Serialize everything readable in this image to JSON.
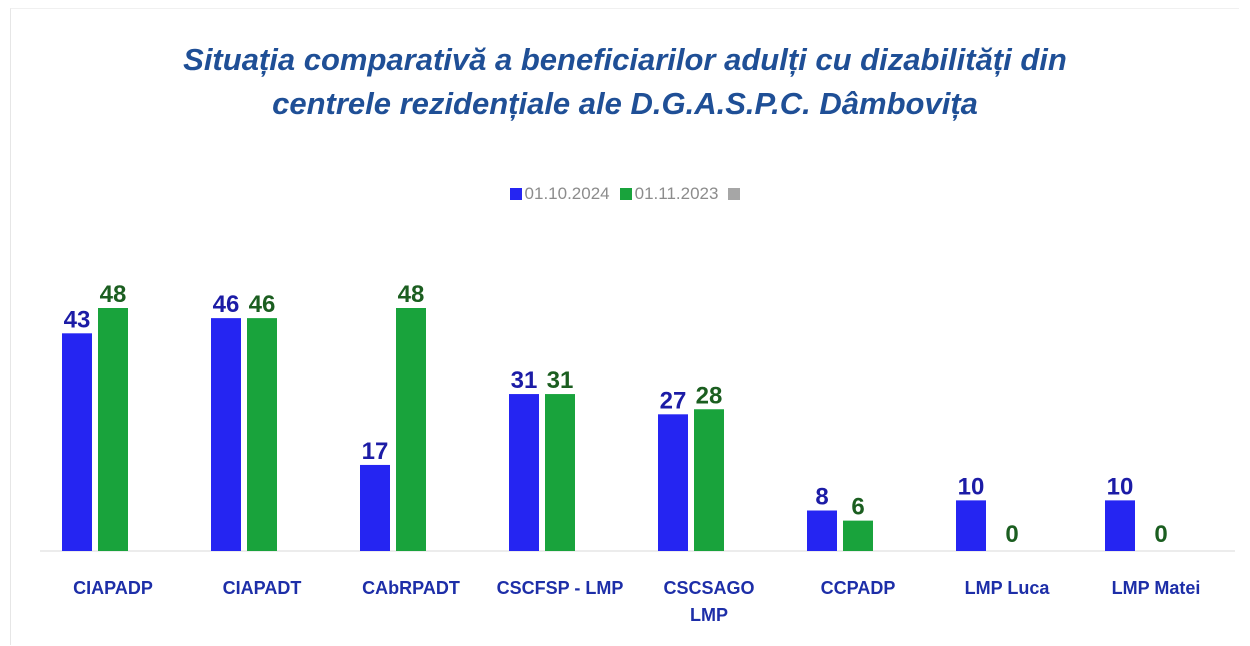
{
  "chart_data": {
    "type": "bar",
    "title": "Situația comparativă a beneficiarilor adulți cu dizabilități din\ncentrele rezidențiale ale D.G.A.S.P.C. Dâmbovița",
    "categories": [
      "CIAPADP",
      "CIAPADT",
      "CAbRPADT",
      "CSCFSP - LMP",
      "CSCSAGO\nLMP",
      "CCPADP",
      "LMP Luca",
      "LMP Matei"
    ],
    "series": [
      {
        "name": "01.10.2024",
        "color": "#2525f2",
        "label_color": "#1c1ca6",
        "values": [
          43,
          46,
          17,
          31,
          27,
          8,
          10,
          10
        ]
      },
      {
        "name": "01.11.2023",
        "color": "#19a33c",
        "label_color": "#1b5e20",
        "values": [
          48,
          46,
          48,
          31,
          28,
          6,
          0,
          0
        ]
      }
    ],
    "legend": "top"
  }
}
